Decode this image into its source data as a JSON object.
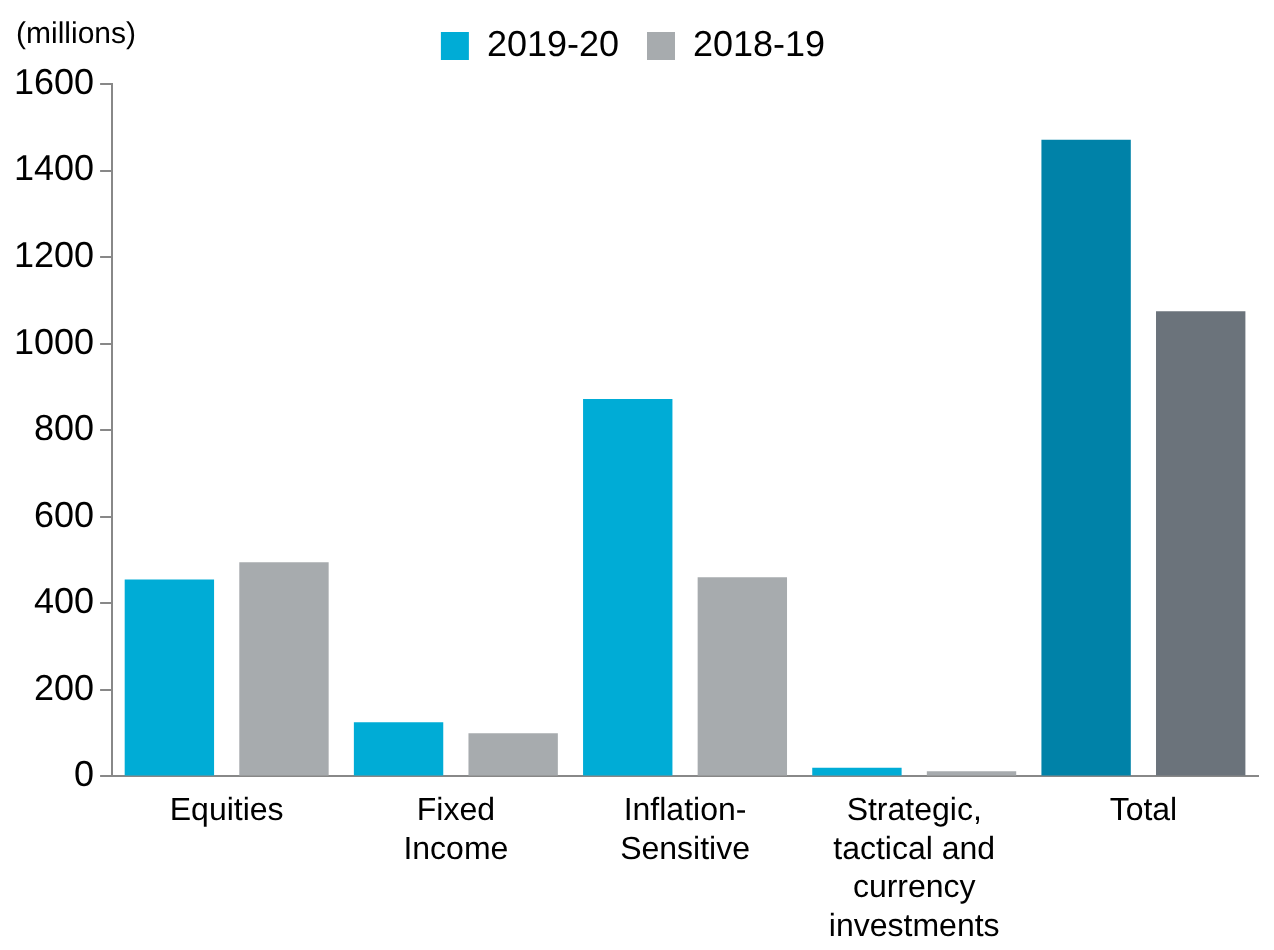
{
  "chart_data": {
    "type": "bar",
    "ylabel": "(millions)",
    "categories": [
      "Equities",
      "Fixed\nIncome",
      "Inflation-\nSensitive",
      "Strategic,\ntactical and\ncurrency\ninvestments",
      "Total"
    ],
    "series": [
      {
        "name": "2019-20",
        "color": "#00acd6",
        "colors": [
          "#00acd6",
          "#00acd6",
          "#00acd6",
          "#00acd6",
          "#0082a8"
        ],
        "values": [
          455,
          125,
          872,
          20,
          1471
        ]
      },
      {
        "name": "2018-19",
        "color": "#a7abae",
        "colors": [
          "#a7abae",
          "#a7abae",
          "#a7abae",
          "#a7abae",
          "#6b737b"
        ],
        "values": [
          495,
          100,
          460,
          12,
          1075
        ]
      }
    ],
    "ylim": [
      0,
      1600
    ],
    "yticks": [
      0,
      200,
      400,
      600,
      800,
      1000,
      1200,
      1400,
      1600
    ],
    "grid": false,
    "legend": "top"
  }
}
